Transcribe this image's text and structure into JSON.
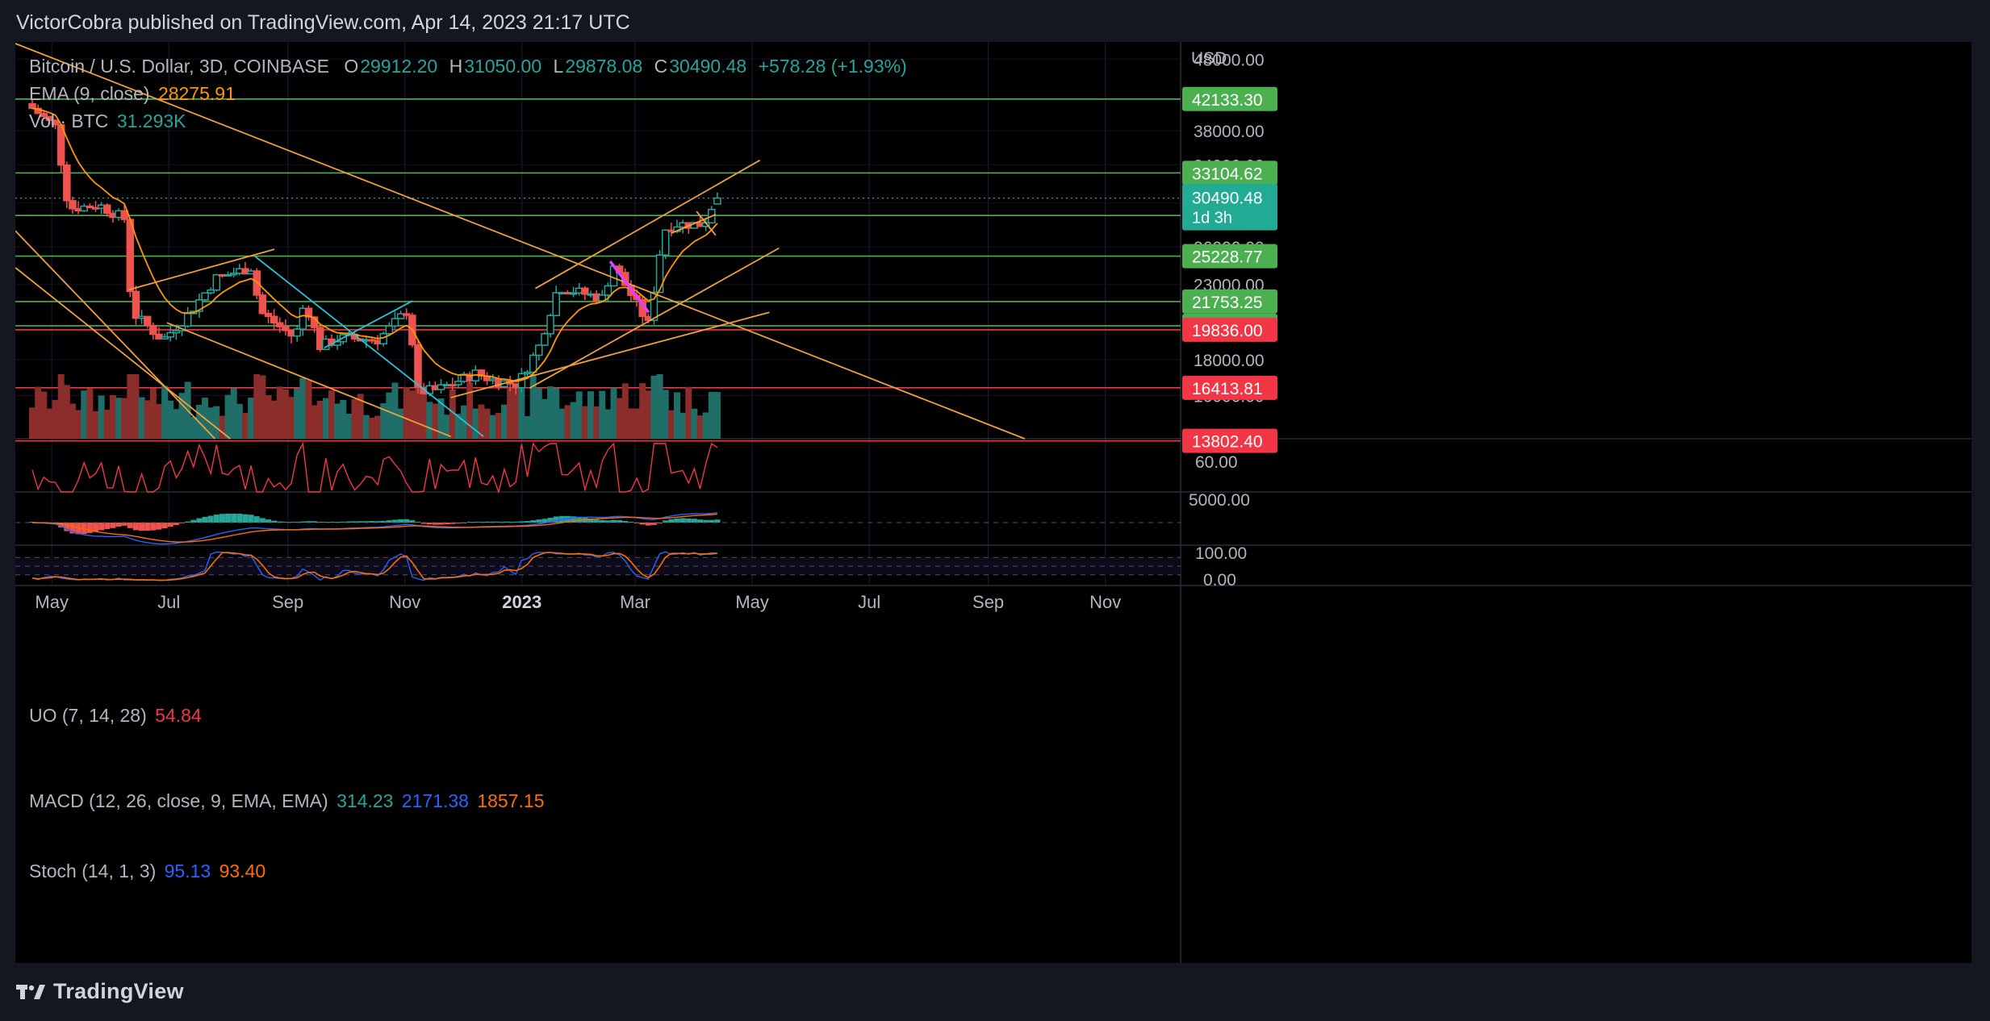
{
  "header": {
    "published_text": "VictorCobra published on TradingView.com, Apr 14, 2023 21:17 UTC"
  },
  "footer": {
    "logo_text": "TradingView"
  },
  "legend": {
    "title": "Bitcoin / U.S. Dollar, 3D, COINBASE",
    "open_label": "O",
    "open": "29912.20",
    "high_label": "H",
    "high": "31050.00",
    "low_label": "L",
    "low": "29878.08",
    "close_label": "C",
    "close": "30490.48",
    "change": "+578.28 (+1.93%)",
    "ema_label": "EMA (9, close)",
    "ema_value": "28275.91",
    "vol_label": "Vol · BTC",
    "vol_value": "31.293K",
    "uo_label": "UO (7, 14, 28)",
    "uo_value": "54.84",
    "macd_label": "MACD (12, 26, close, 9, EMA, EMA)",
    "macd_hist": "314.23",
    "macd_line": "2171.38",
    "macd_signal": "1857.15",
    "stoch_label": "Stoch (14, 1, 3)",
    "stoch_k": "95.13",
    "stoch_d": "93.40"
  },
  "colors": {
    "up": "#26a69a",
    "down": "#ef5350",
    "ema": "#ff9800",
    "trend": "#f0a13a",
    "cyan": "#26c6da",
    "green_level": "#4caf50",
    "red_level": "#f23645",
    "magenta": "#e040fb",
    "macd_line": "#2962ff",
    "macd_signal": "#ff6d00",
    "uo": "#f23645"
  },
  "chart_data": {
    "type": "candlestick",
    "symbol": "Bitcoin / U.S. Dollar",
    "interval": "3D",
    "exchange": "COINBASE",
    "currency_label": "USD",
    "y_scale": "log",
    "x_ticks": [
      "May",
      "Jul",
      "Sep",
      "Nov",
      "2023",
      "Mar",
      "May",
      "Jul",
      "Sep",
      "Nov"
    ],
    "y_ticks": [
      48000,
      42000,
      38000,
      34000,
      30000,
      26000,
      23000,
      18000,
      16000
    ],
    "y_tick_labels": [
      "48000.00",
      "42000.00",
      "38000.00",
      "34000.00",
      "30000.00",
      "26000.00",
      "23000.00",
      "18000.00",
      "16000.00"
    ],
    "price_levels": [
      {
        "value": 42133.3,
        "label": "42133.30",
        "color": "green"
      },
      {
        "value": 33104.62,
        "label": "33104.62",
        "color": "green"
      },
      {
        "value": 28805.6,
        "label": "28805.60",
        "color": "green"
      },
      {
        "value": 25228.77,
        "label": "25228.77",
        "color": "green"
      },
      {
        "value": 21753.25,
        "label": "21753.25",
        "color": "green"
      },
      {
        "value": 20096.57,
        "label": "20096.57",
        "color": "green"
      },
      {
        "value": 19836.0,
        "label": "19836.00",
        "color": "red"
      },
      {
        "value": 16413.81,
        "label": "16413.81",
        "color": "red"
      },
      {
        "value": 13802.4,
        "label": "13802.40",
        "color": "red"
      }
    ],
    "current_price": {
      "value": 30490.48,
      "label": "30490.48",
      "countdown": "1d 3h"
    },
    "last_bar": {
      "open": 29912.2,
      "high": 31050.0,
      "low": 29878.08,
      "close": 30490.48,
      "change": 578.28,
      "change_pct": 1.93
    },
    "anchors": [
      [
        "2022-04-20",
        41500
      ],
      [
        "2022-05-05",
        38500
      ],
      [
        "2022-05-12",
        29500
      ],
      [
        "2022-05-28",
        29800
      ],
      [
        "2022-06-10",
        28500
      ],
      [
        "2022-06-14",
        21000
      ],
      [
        "2022-06-20",
        20300
      ],
      [
        "2022-06-30",
        19200
      ],
      [
        "2022-07-13",
        20800
      ],
      [
        "2022-07-28",
        23500
      ],
      [
        "2022-08-15",
        24300
      ],
      [
        "2022-08-20",
        21000
      ],
      [
        "2022-09-07",
        19300
      ],
      [
        "2022-09-12",
        21800
      ],
      [
        "2022-09-20",
        18800
      ],
      [
        "2022-10-01",
        19300
      ],
      [
        "2022-10-20",
        19200
      ],
      [
        "2022-11-05",
        21200
      ],
      [
        "2022-11-10",
        16200
      ],
      [
        "2022-11-20",
        16300
      ],
      [
        "2022-12-10",
        17200
      ],
      [
        "2022-12-20",
        16800
      ],
      [
        "2023-01-01",
        16600
      ],
      [
        "2023-01-12",
        18800
      ],
      [
        "2023-01-22",
        22800
      ],
      [
        "2023-02-14",
        22000
      ],
      [
        "2023-02-20",
        24500
      ],
      [
        "2023-03-10",
        20200
      ],
      [
        "2023-03-18",
        27500
      ],
      [
        "2023-03-24",
        28000
      ],
      [
        "2023-04-08",
        28000
      ],
      [
        "2023-04-14",
        30490.48
      ]
    ],
    "ema": {
      "period": 9,
      "source": "close",
      "last": 28275.91
    },
    "volume": {
      "unit": "BTC",
      "last": "31.293K"
    },
    "uo": {
      "params": [
        7,
        14,
        28
      ],
      "last": 54.84,
      "y_tick": 60
    },
    "macd": {
      "params": [
        12,
        26,
        9
      ],
      "histogram": 314.23,
      "macd": 2171.38,
      "signal": 1857.15,
      "y_tick": 5000
    },
    "stoch": {
      "params": [
        14,
        1,
        3
      ],
      "k": 95.13,
      "d": 93.4,
      "y_ticks": [
        100,
        0
      ]
    },
    "trendlines": [
      {
        "color": "trend",
        "from": [
          "2022-04-12",
          50500
        ],
        "to": [
          "2023-09-20",
          13900
        ]
      },
      {
        "color": "trend",
        "from": [
          "2022-04-12",
          27400
        ],
        "to": [
          "2022-07-25",
          13900
        ]
      },
      {
        "color": "trend",
        "from": [
          "2022-04-12",
          24300
        ],
        "to": [
          "2022-08-02",
          13900
        ]
      },
      {
        "color": "trend",
        "from": [
          "2022-06-10",
          22600
        ],
        "to": [
          "2022-08-25",
          25800
        ]
      },
      {
        "color": "trend",
        "from": [
          "2022-06-30",
          20300
        ],
        "to": [
          "2022-11-25",
          14000
        ]
      },
      {
        "color": "trend",
        "from": [
          "2023-01-05",
          16400
        ],
        "to": [
          "2023-05-15",
          25900
        ]
      },
      {
        "color": "trend",
        "from": [
          "2022-11-25",
          15900
        ],
        "to": [
          "2023-05-10",
          21000
        ]
      },
      {
        "color": "trend",
        "from": [
          "2023-01-08",
          22700
        ],
        "to": [
          "2023-05-05",
          34500
        ]
      },
      {
        "color": "trend",
        "from": [
          "2023-04-02",
          29200
        ],
        "to": [
          "2023-04-12",
          27000
        ]
      },
      {
        "color": "trend",
        "from": [
          "2023-03-20",
          27200
        ],
        "to": [
          "2023-04-12",
          28900
        ]
      },
      {
        "color": "cyan",
        "from": [
          "2022-08-15",
          25200
        ],
        "to": [
          "2022-12-12",
          14000
        ]
      },
      {
        "color": "cyan",
        "from": [
          "2022-09-20",
          18700
        ],
        "to": [
          "2022-11-05",
          21800
        ]
      },
      {
        "color": "magenta",
        "from": [
          "2023-02-16",
          24800
        ],
        "to": [
          "2023-03-08",
          21000
        ]
      }
    ]
  }
}
